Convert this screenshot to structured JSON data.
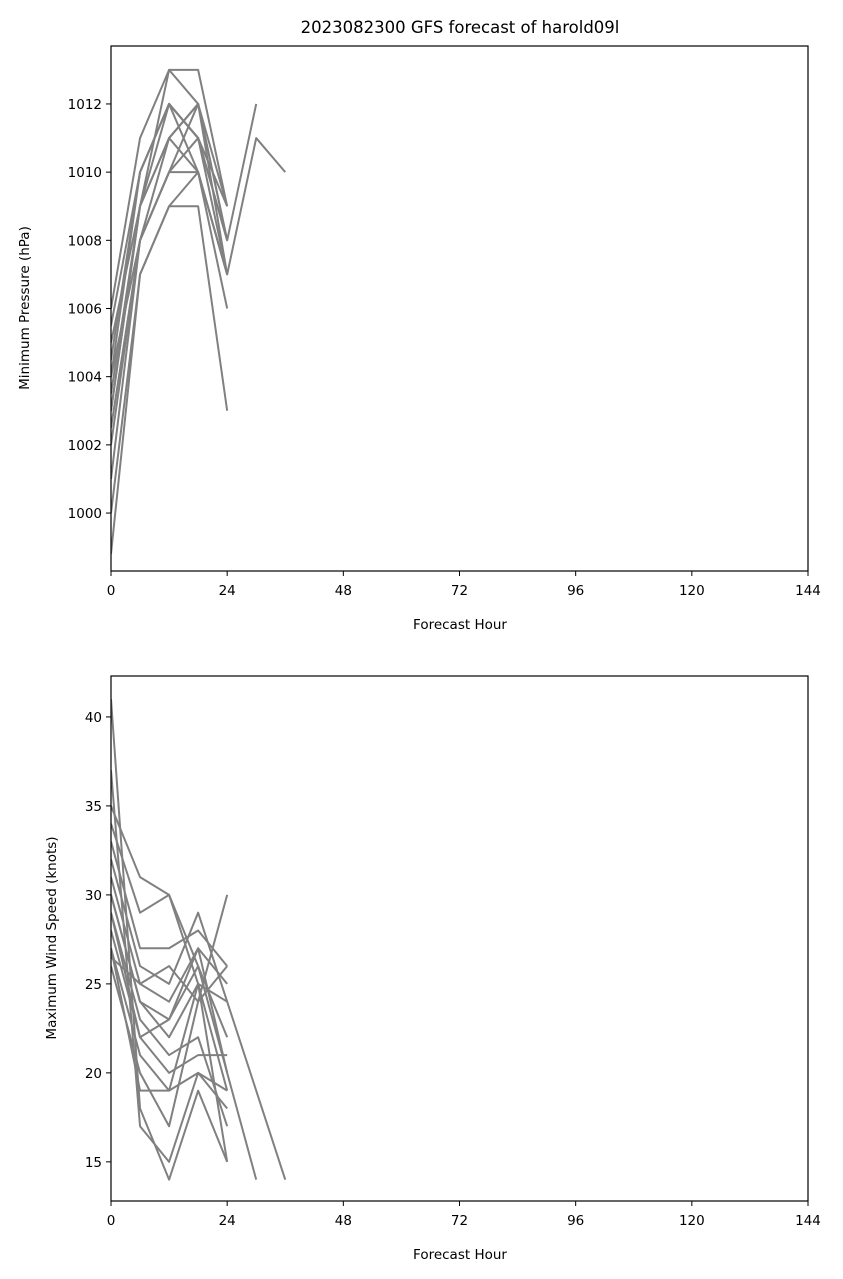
{
  "chart_data": [
    {
      "type": "line",
      "title": "2023082300 GFS forecast of harold09l",
      "xlabel": "Forecast Hour",
      "ylabel": "Minimum Pressure (hPa)",
      "xlim": [
        0,
        144
      ],
      "ylim": [
        998.3,
        1013.7
      ],
      "xticks": [
        0,
        24,
        48,
        72,
        96,
        120,
        144
      ],
      "yticks": [
        1000,
        1002,
        1004,
        1006,
        1008,
        1010,
        1012
      ],
      "grid": false,
      "legend": "none",
      "line_color": "#808080",
      "series": [
        {
          "x": [
            0,
            6,
            12,
            18,
            24
          ],
          "y": [
            998.8,
            1007,
            1009,
            1009,
            1003
          ]
        },
        {
          "x": [
            0,
            6,
            12,
            18,
            24
          ],
          "y": [
            1000,
            1007,
            1009,
            1010,
            1007
          ]
        },
        {
          "x": [
            0,
            6,
            12,
            18,
            24
          ],
          "y": [
            1001,
            1008,
            1010,
            1012,
            1009
          ]
        },
        {
          "x": [
            0,
            6,
            12,
            18,
            24
          ],
          "y": [
            1002,
            1008,
            1010,
            1011,
            1008
          ]
        },
        {
          "x": [
            0,
            6,
            12,
            18,
            24
          ],
          "y": [
            1003,
            1009,
            1011,
            1010,
            1006
          ]
        },
        {
          "x": [
            0,
            6,
            12,
            18,
            24
          ],
          "y": [
            1003.5,
            1009,
            1012,
            1011,
            1008
          ]
        },
        {
          "x": [
            0,
            6,
            12,
            18,
            24
          ],
          "y": [
            1004,
            1008,
            1011,
            1012,
            1007
          ]
        },
        {
          "x": [
            0,
            6,
            12,
            18,
            24
          ],
          "y": [
            1004.5,
            1010,
            1012,
            1011,
            1009
          ]
        },
        {
          "x": [
            0,
            6,
            12,
            18,
            24
          ],
          "y": [
            1005,
            1009,
            1013,
            1012,
            1008
          ]
        },
        {
          "x": [
            0,
            6,
            12,
            18,
            24
          ],
          "y": [
            1005.5,
            1010,
            1012,
            1010,
            1007
          ]
        },
        {
          "x": [
            0,
            6,
            12,
            18,
            24
          ],
          "y": [
            1006,
            1011,
            1013,
            1013,
            1009
          ]
        },
        {
          "x": [
            0,
            6,
            12,
            18,
            24
          ],
          "y": [
            1002.5,
            1008,
            1010,
            1010,
            1007
          ]
        },
        {
          "x": [
            0,
            6,
            12,
            18,
            24,
            30
          ],
          "y": [
            1003,
            1009,
            1011,
            1012,
            1008,
            1012
          ]
        },
        {
          "x": [
            0,
            6,
            12,
            18,
            24,
            30,
            36
          ],
          "y": [
            1004,
            1010,
            1012,
            1011,
            1007,
            1011,
            1010
          ]
        }
      ]
    },
    {
      "type": "line",
      "title": "",
      "xlabel": "Forecast Hour",
      "ylabel": "Maximum Wind Speed (knots)",
      "xlim": [
        0,
        144
      ],
      "ylim": [
        12.8,
        42.3
      ],
      "xticks": [
        0,
        24,
        48,
        72,
        96,
        120,
        144
      ],
      "yticks": [
        15,
        20,
        25,
        30,
        35,
        40
      ],
      "grid": false,
      "legend": "none",
      "line_color": "#808080",
      "series": [
        {
          "x": [
            0,
            6,
            12,
            18,
            24
          ],
          "y": [
            41,
            18,
            14,
            19,
            15
          ]
        },
        {
          "x": [
            0,
            6,
            12,
            18,
            24
          ],
          "y": [
            37,
            17,
            15,
            20,
            18
          ]
        },
        {
          "x": [
            0,
            6,
            12,
            18,
            24
          ],
          "y": [
            35,
            31,
            30,
            26,
            22
          ]
        },
        {
          "x": [
            0,
            6,
            12,
            18,
            24
          ],
          "y": [
            34,
            29,
            30,
            25,
            19
          ]
        },
        {
          "x": [
            0,
            6,
            12,
            18,
            24
          ],
          "y": [
            33,
            27,
            27,
            28,
            26
          ]
        },
        {
          "x": [
            0,
            6,
            12,
            18,
            24
          ],
          "y": [
            32,
            26,
            25,
            29,
            24
          ]
        },
        {
          "x": [
            0,
            6,
            12,
            18,
            24
          ],
          "y": [
            31,
            25,
            24,
            27,
            25
          ]
        },
        {
          "x": [
            0,
            6,
            12,
            18,
            24
          ],
          "y": [
            30,
            24,
            23,
            26,
            20
          ]
        },
        {
          "x": [
            0,
            6,
            12,
            18,
            24
          ],
          "y": [
            29,
            23,
            21,
            22,
            17
          ]
        },
        {
          "x": [
            0,
            6,
            12,
            18,
            24
          ],
          "y": [
            28,
            22,
            20,
            21,
            21
          ]
        },
        {
          "x": [
            0,
            6,
            12,
            18,
            24
          ],
          "y": [
            27,
            21,
            19,
            20,
            19
          ]
        },
        {
          "x": [
            0,
            6,
            12,
            18,
            24
          ],
          "y": [
            26,
            20,
            17,
            24,
            30
          ]
        },
        {
          "x": [
            0,
            6,
            12,
            18,
            24,
            30
          ],
          "y": [
            29,
            22,
            23,
            27,
            20,
            14
          ]
        },
        {
          "x": [
            0,
            6,
            12,
            18,
            24,
            30,
            36
          ],
          "y": [
            30,
            24,
            22,
            25,
            24,
            19,
            14
          ]
        },
        {
          "x": [
            0,
            6,
            12,
            18,
            24
          ],
          "y": [
            27,
            19,
            19,
            25,
            15
          ]
        },
        {
          "x": [
            0,
            6,
            12,
            18,
            24
          ],
          "y": [
            26.5,
            25,
            26,
            24,
            26
          ]
        }
      ]
    }
  ]
}
